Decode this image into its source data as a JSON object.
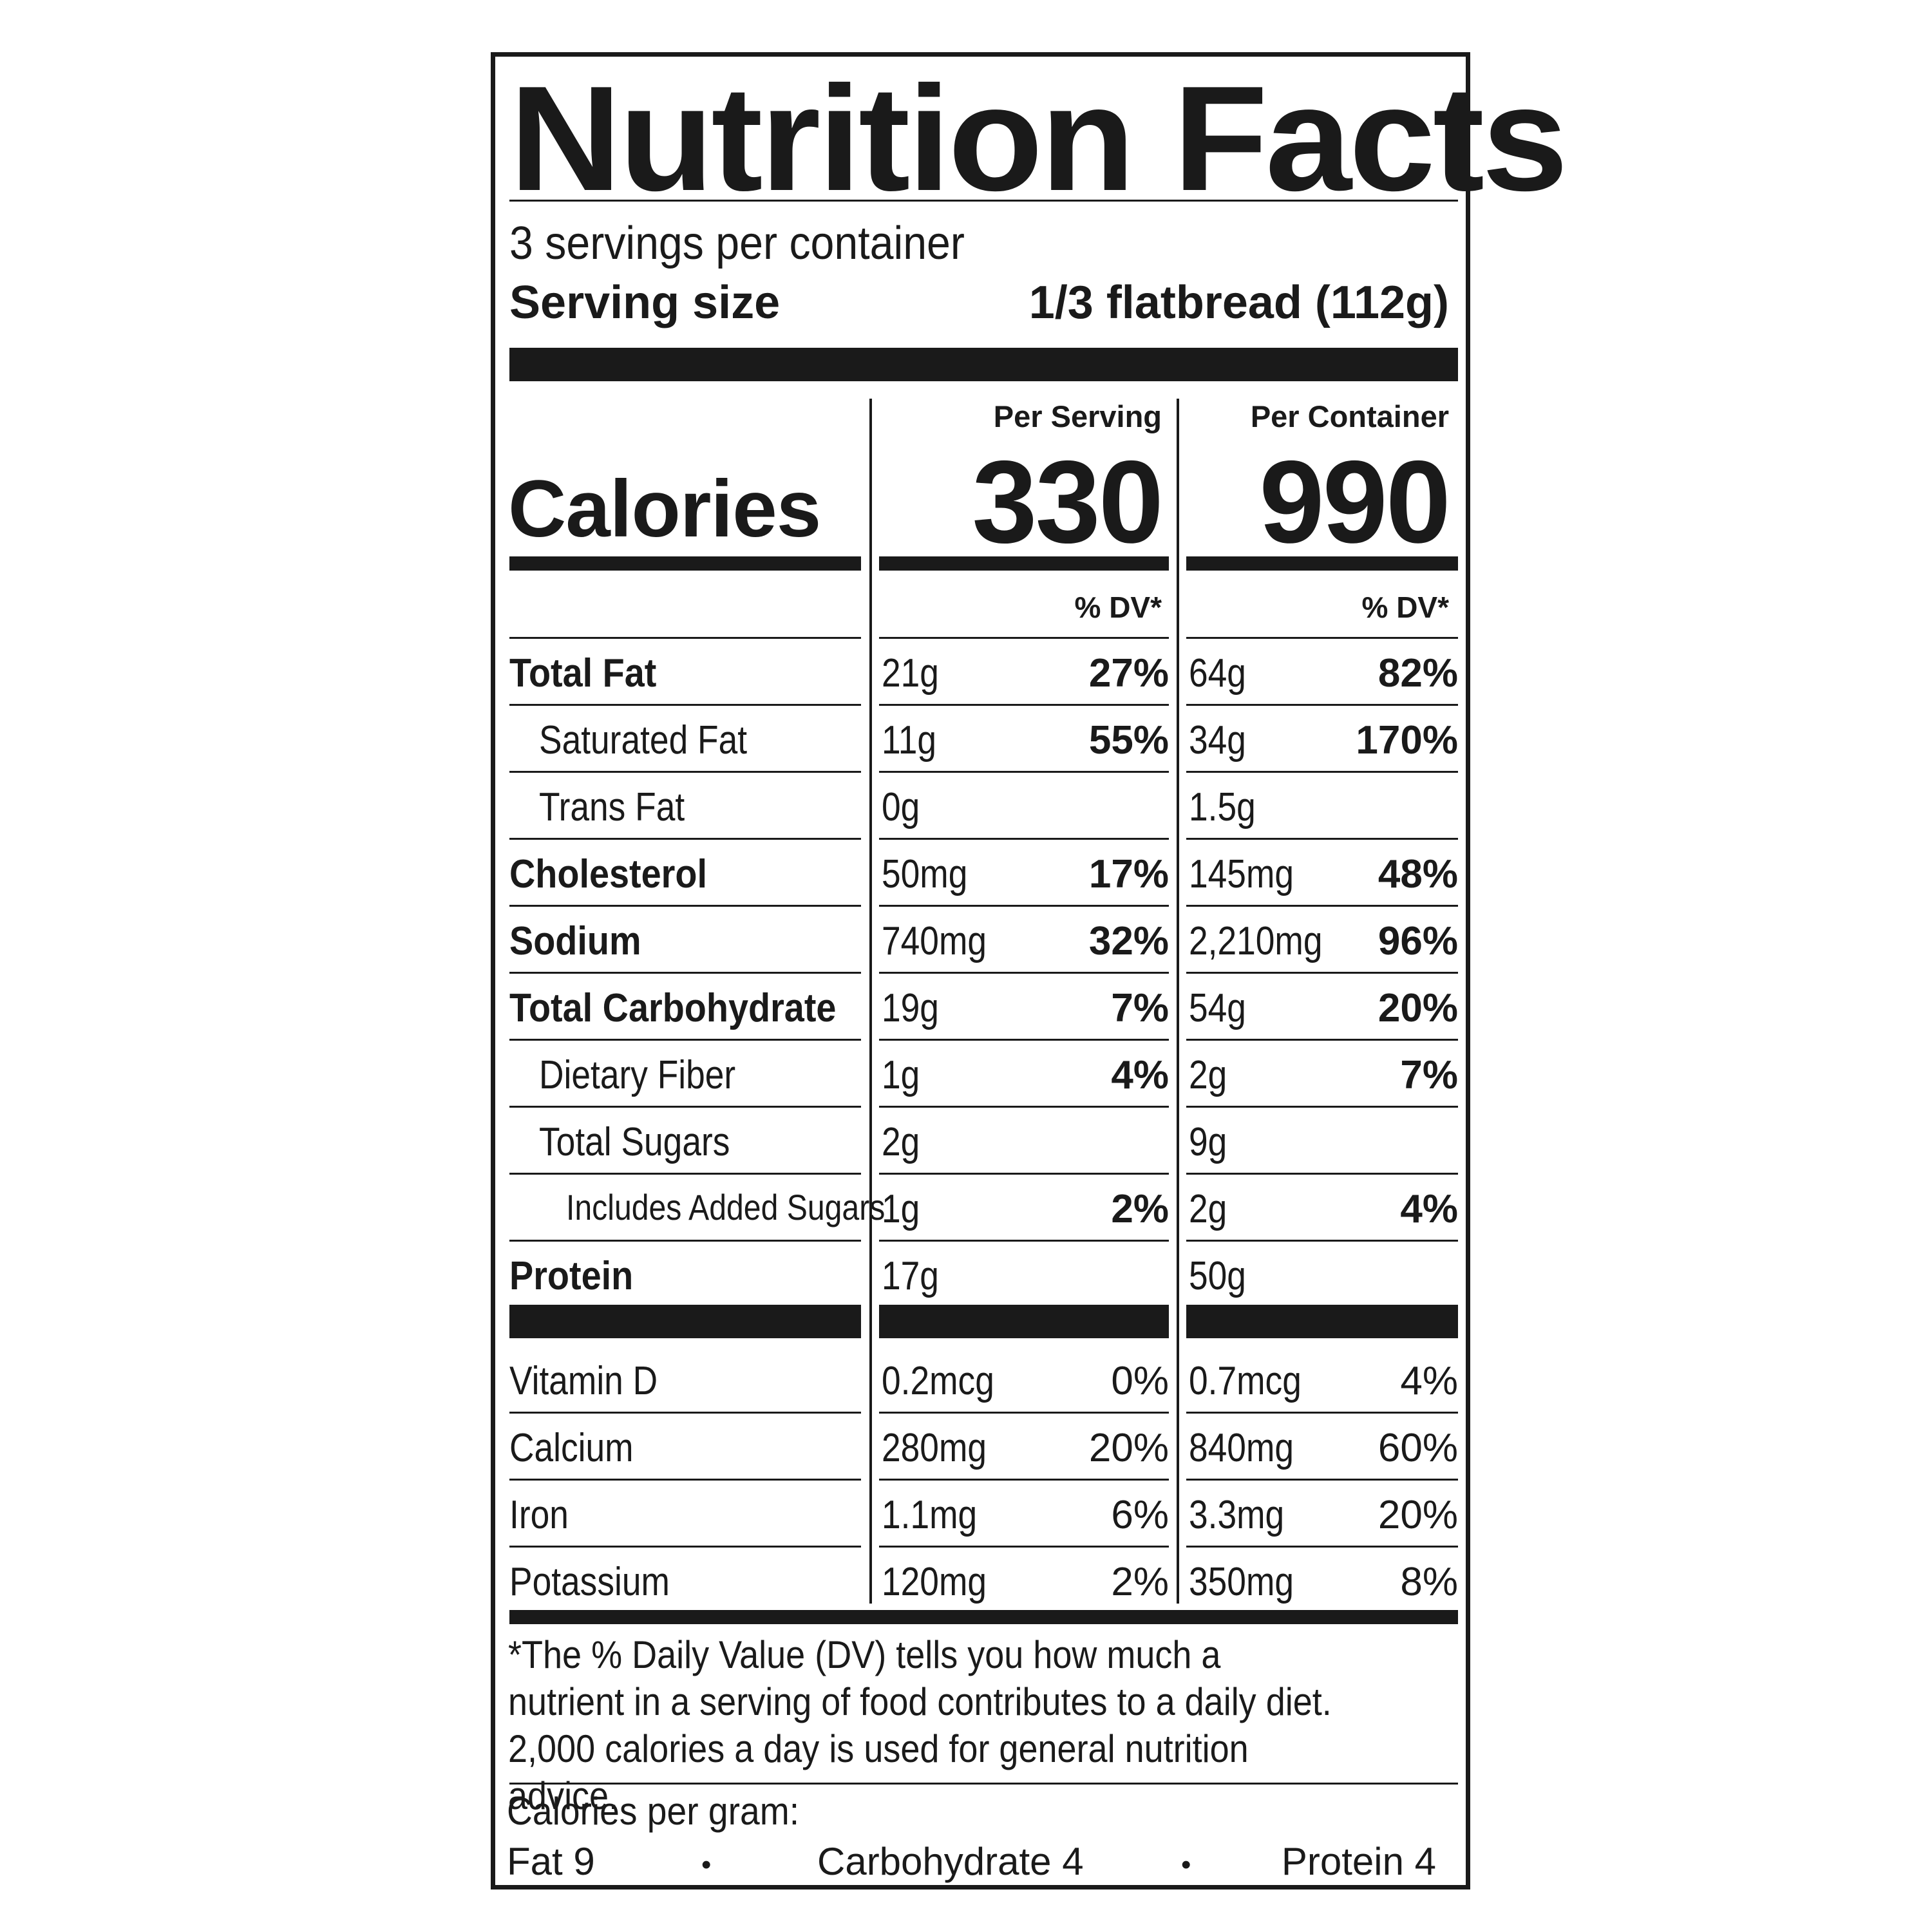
{
  "title": "Nutrition Facts",
  "servings_per_container": "3 servings per container",
  "serving_size": {
    "label": "Serving size",
    "value": "1/3 flatbread (112g)"
  },
  "calories": {
    "label": "Calories",
    "per_serving_header": "Per Serving",
    "per_container_header": "Per Container",
    "per_serving": "330",
    "per_container": "990"
  },
  "dv_header": "% DV*",
  "nutrients": [
    {
      "name": "Total Fat",
      "style": "bold",
      "serving_amount": "21g",
      "serving_dv": "27%",
      "container_amount": "64g",
      "container_dv": "82%"
    },
    {
      "name": "Saturated Fat",
      "style": "sub",
      "serving_amount": "11g",
      "serving_dv": "55%",
      "container_amount": "34g",
      "container_dv": "170%"
    },
    {
      "name": "Trans Fat",
      "style": "sub",
      "serving_amount": "0g",
      "serving_dv": "",
      "container_amount": "1.5g",
      "container_dv": ""
    },
    {
      "name": "Cholesterol",
      "style": "bold",
      "serving_amount": "50mg",
      "serving_dv": "17%",
      "container_amount": "145mg",
      "container_dv": "48%"
    },
    {
      "name": "Sodium",
      "style": "bold",
      "serving_amount": "740mg",
      "serving_dv": "32%",
      "container_amount": "2,210mg",
      "container_dv": "96%"
    },
    {
      "name": "Total Carbohydrate",
      "style": "bold",
      "serving_amount": "19g",
      "serving_dv": "7%",
      "container_amount": "54g",
      "container_dv": "20%"
    },
    {
      "name": "Dietary Fiber",
      "style": "sub",
      "serving_amount": "1g",
      "serving_dv": "4%",
      "container_amount": "2g",
      "container_dv": "7%"
    },
    {
      "name": "Total Sugars",
      "style": "sub",
      "serving_amount": "2g",
      "serving_dv": "",
      "container_amount": "9g",
      "container_dv": ""
    },
    {
      "name": "Includes Added Sugars",
      "style": "subsub",
      "serving_amount": "1g",
      "serving_dv": "2%",
      "container_amount": "2g",
      "container_dv": "4%"
    },
    {
      "name": "Protein",
      "style": "bold",
      "serving_amount": "17g",
      "serving_dv": "",
      "container_amount": "50g",
      "container_dv": ""
    }
  ],
  "vitamins": [
    {
      "name": "Vitamin D",
      "serving_amount": "0.2mcg",
      "serving_dv": "0%",
      "container_amount": "0.7mcg",
      "container_dv": "4%"
    },
    {
      "name": "Calcium",
      "serving_amount": "280mg",
      "serving_dv": "20%",
      "container_amount": "840mg",
      "container_dv": "60%"
    },
    {
      "name": "Iron",
      "serving_amount": "1.1mg",
      "serving_dv": "6%",
      "container_amount": "3.3mg",
      "container_dv": "20%"
    },
    {
      "name": "Potassium",
      "serving_amount": "120mg",
      "serving_dv": "2%",
      "container_amount": "350mg",
      "container_dv": "8%"
    }
  ],
  "footnote": "*The % Daily Value (DV) tells you how much a nutrient in a serving of food contributes to a daily diet. 2,000 calories a day is used for general nutrition advice.",
  "calories_per_gram": {
    "label": "Calories per gram:",
    "fat": "Fat 9",
    "carbohydrate": "Carbohydrate 4",
    "protein": "Protein 4",
    "separator": "•"
  }
}
